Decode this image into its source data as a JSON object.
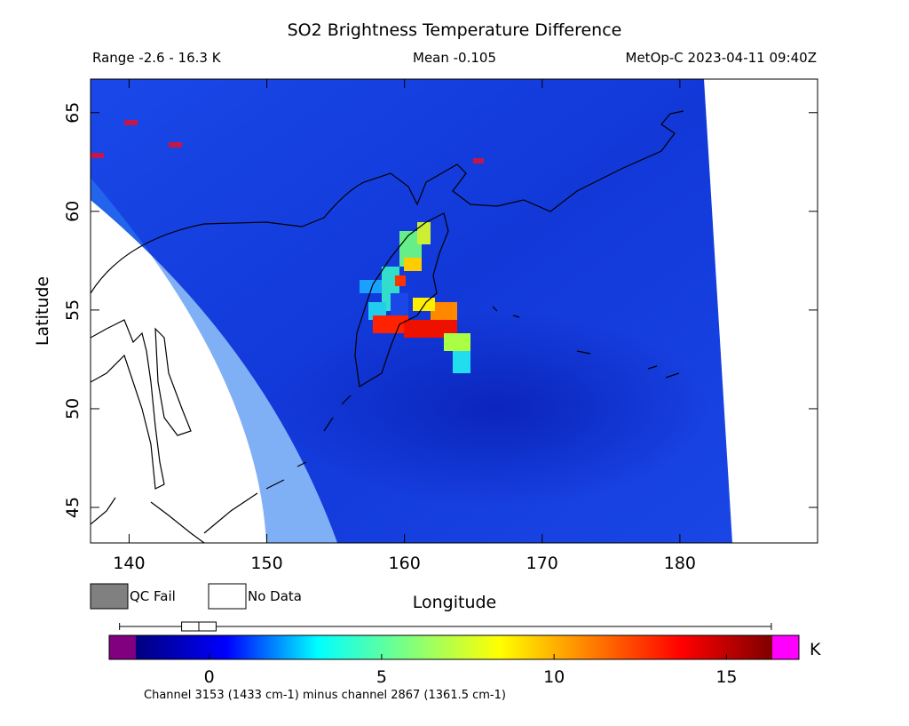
{
  "chart_data": {
    "type": "map",
    "title": "SO2 Brightness Temperature Difference",
    "subtitle_left": "Range -2.6 - 16.3 K",
    "subtitle_center": "Mean -0.105",
    "subtitle_right": "MetOp-C 2023-04-11 09:40Z",
    "xlabel": "Longitude",
    "ylabel": "Latitude",
    "xlim": [
      137.2,
      190
    ],
    "ylim": [
      43.2,
      66.7
    ],
    "xticks": [
      140,
      150,
      160,
      170,
      180
    ],
    "yticks": [
      45,
      50,
      55,
      60,
      65
    ],
    "legend": [
      {
        "label": "QC Fail",
        "color": "#808080"
      },
      {
        "label": "No Data",
        "color": "#ffffff"
      }
    ],
    "colorbar": {
      "unit": "K",
      "lim": [
        -2.9,
        17.1
      ],
      "ticks": [
        0,
        5,
        10,
        15
      ],
      "colormap": [
        "#00007f",
        "#0000ff",
        "#00ffff",
        "#7fff7f",
        "#ffff00",
        "#ff7f00",
        "#ff0000",
        "#7f0000"
      ],
      "under_color": "#800080",
      "over_color": "#ff00ff",
      "box": {
        "min": -2.6,
        "q1": -0.8,
        "median": -0.3,
        "q3": 0.2,
        "max": 16.3
      },
      "caption": "Channel 3153 (1433 cm-1) minus channel 2867 (1361.5 cm-1)"
    }
  }
}
